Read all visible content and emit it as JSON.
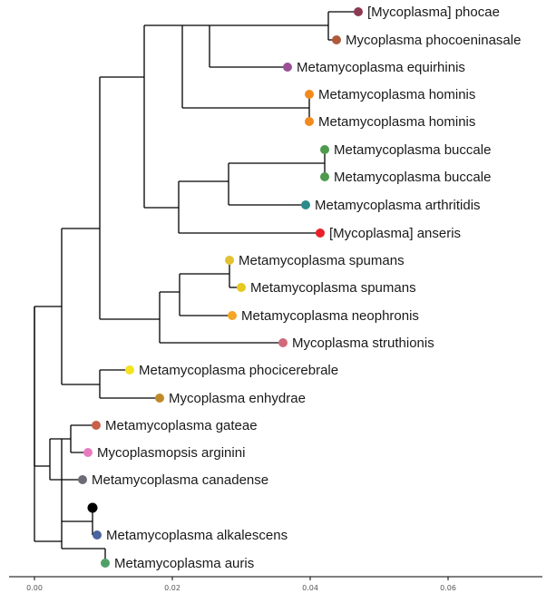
{
  "axis": {
    "ticks": [
      "0.00",
      "0.02",
      "0.04",
      "0.06"
    ]
  },
  "tips": [
    {
      "label": "[Mycoplasma] phocae",
      "color": "#8B3A52"
    },
    {
      "label": "Mycoplasma phocoeninasale",
      "color": "#B05A3C"
    },
    {
      "label": "Metamycoplasma equirhinis",
      "color": "#9B4F96"
    },
    {
      "label": "Metamycoplasma hominis",
      "color": "#F28A1E"
    },
    {
      "label": "Metamycoplasma hominis",
      "color": "#F28A1E"
    },
    {
      "label": "Metamycoplasma buccale",
      "color": "#4E9A4E"
    },
    {
      "label": "Metamycoplasma buccale",
      "color": "#4E9A4E"
    },
    {
      "label": "Metamycoplasma arthritidis",
      "color": "#2E8B8B"
    },
    {
      "label": "[Mycoplasma] anseris",
      "color": "#E8212A"
    },
    {
      "label": "Metamycoplasma spumans",
      "color": "#E2C230"
    },
    {
      "label": "Metamycoplasma spumans",
      "color": "#E8C81E"
    },
    {
      "label": "Metamycoplasma neophronis",
      "color": "#F5A623"
    },
    {
      "label": "Mycoplasma struthionis",
      "color": "#D06A7A"
    },
    {
      "label": "Metamycoplasma phocicerebrale",
      "color": "#F4E21E"
    },
    {
      "label": "Mycoplasma enhydrae",
      "color": "#C08A2A"
    },
    {
      "label": "Metamycoplasma gateae",
      "color": "#C8604A"
    },
    {
      "label": "Mycoplasmopsis arginini",
      "color": "#E77BC0"
    },
    {
      "label": "Metamycoplasma canadense",
      "color": "#6F6A78"
    },
    {
      "label": "Metamycoplasma alkalescens",
      "color": "#4A64A0"
    },
    {
      "label": "Metamycoplasma auris",
      "color": "#4FA067"
    }
  ],
  "root_marker_color": "#000000"
}
